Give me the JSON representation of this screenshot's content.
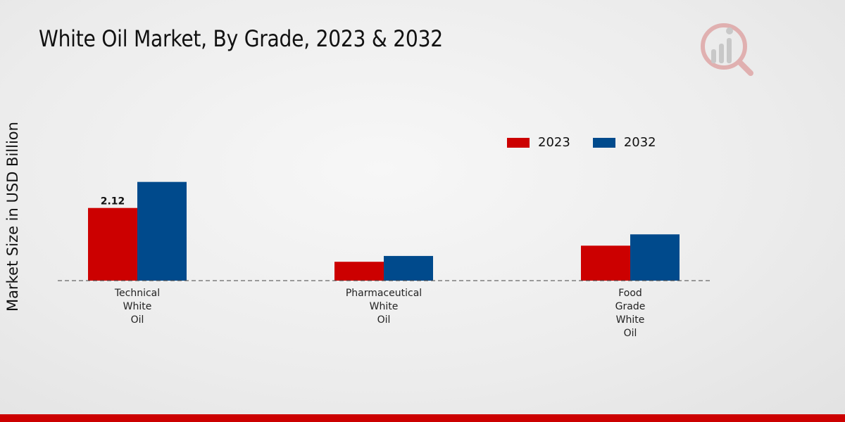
{
  "colors": {
    "series_2023": "#cc0000",
    "series_2032": "#004a8c",
    "accent_bar": "#cc0000"
  },
  "icons": {
    "logo": "market-research-logo-icon"
  },
  "chart_data": {
    "type": "bar",
    "title": "White Oil Market, By Grade, 2023 & 2032",
    "xlabel": "",
    "ylabel": "Market Size in USD Billion",
    "categories": [
      [
        "Technical",
        "White",
        "Oil"
      ],
      [
        "Pharmaceutical",
        "White",
        "Oil"
      ],
      [
        "Food",
        "Grade",
        "White",
        "Oil"
      ]
    ],
    "series": [
      {
        "name": "2023",
        "values": [
          2.12,
          0.55,
          1.02
        ]
      },
      {
        "name": "2032",
        "values": [
          2.88,
          0.72,
          1.35
        ]
      }
    ],
    "data_labels": [
      {
        "series": 0,
        "index": 0,
        "text": "2.12"
      }
    ],
    "ylim": [
      0,
      6.3
    ],
    "legend_position": "top-right",
    "grid": false
  }
}
